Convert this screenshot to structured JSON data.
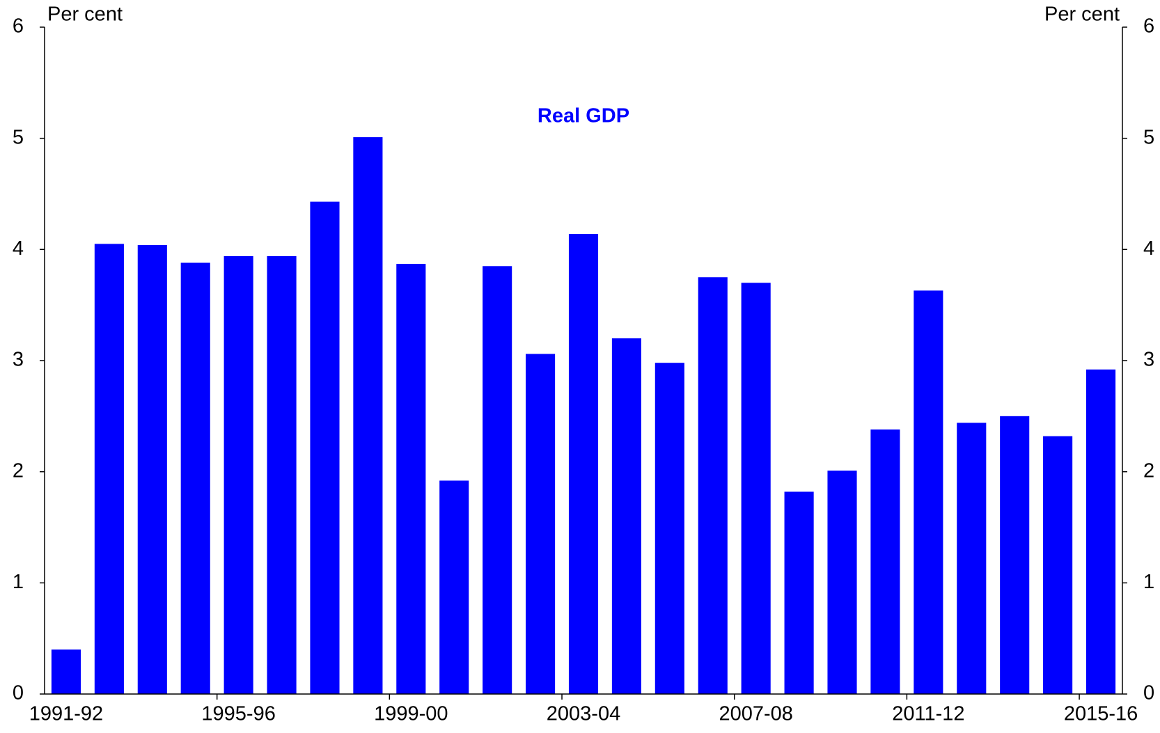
{
  "chart_data": {
    "type": "bar",
    "annotation": "Real GDP",
    "y_label": "Per cent",
    "y2_label": "Per cent",
    "categories": [
      "1991-92",
      null,
      null,
      null,
      "1995-96",
      null,
      null,
      null,
      "1999-00",
      null,
      null,
      null,
      "2003-04",
      null,
      null,
      null,
      "2007-08",
      null,
      null,
      null,
      "2011-12",
      null,
      null,
      null,
      "2015-16"
    ],
    "values": [
      0.4,
      4.05,
      4.04,
      3.88,
      3.94,
      3.94,
      4.43,
      5.01,
      3.87,
      1.92,
      3.85,
      3.06,
      4.14,
      3.2,
      2.98,
      3.75,
      3.7,
      1.82,
      2.01,
      2.38,
      3.63,
      2.44,
      2.5,
      2.32,
      2.92
    ],
    "color": "#0000ff",
    "ylim": [
      0,
      6
    ],
    "yticks": [
      0,
      1,
      2,
      3,
      4,
      5,
      6
    ],
    "y2lim": [
      0,
      6
    ],
    "y2ticks": [
      0,
      1,
      2,
      3,
      4,
      5,
      6
    ],
    "grid": false
  }
}
